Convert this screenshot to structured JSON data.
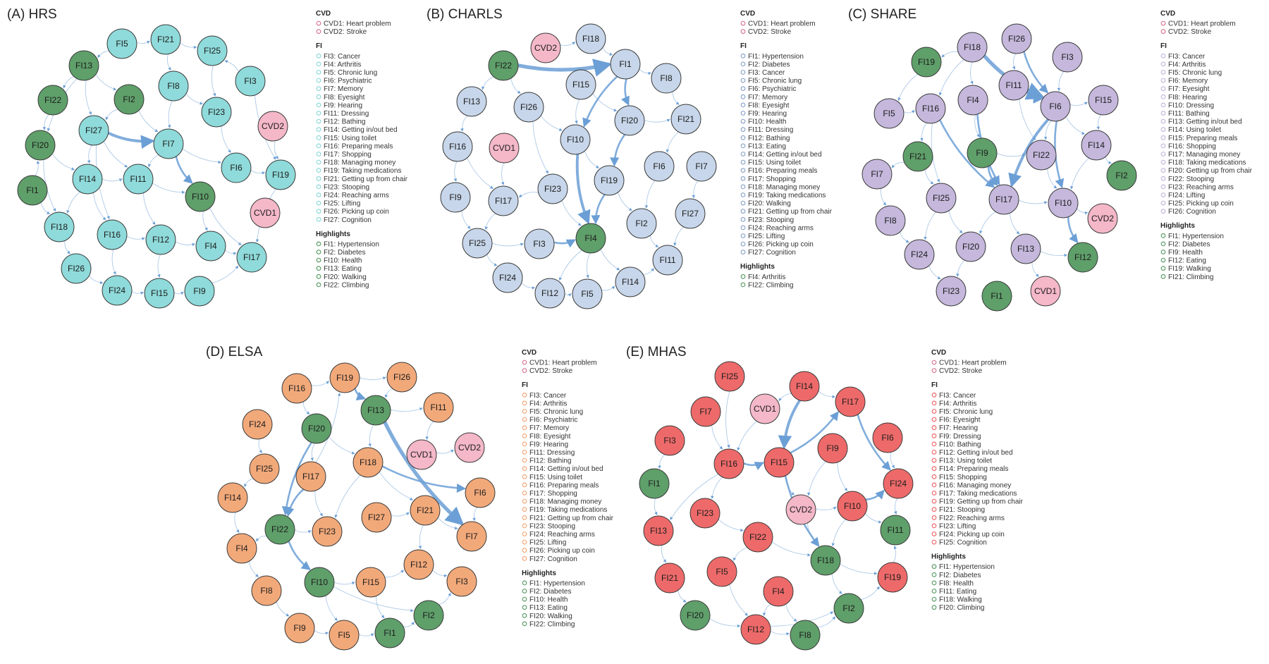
{
  "colors": {
    "hrs": "#8fdada",
    "charls": "#c7d6ea",
    "share": "#c5b8dc",
    "elsa": "#f2a97a",
    "mhas": "#ee6a6a",
    "cvd": "#f4b8c8",
    "highlight": "#5f9f6a",
    "edge": "#6b9fd6"
  },
  "panels": [
    {
      "id": "hrs",
      "title": "(A) HRS",
      "legend": {
        "cvd_header": "CVD",
        "cvd": [
          "CVD1: Heart problem",
          "CVD2: Stroke"
        ],
        "fi_header": "FI",
        "fi": [
          "FI3: Cancer",
          "FI4: Arthritis",
          "FI5: Chronic lung",
          "FI6: Psychiatric",
          "FI7: Memory",
          "FI8: Eyesight",
          "FI9: Hearing",
          "FI11: Dressing",
          "FI12: Bathing",
          "FI14: Getting in/out bed",
          "FI15: Using toilet",
          "FI16: Preparing meals",
          "FI17: Shopping",
          "FI18: Managing money",
          "FI19: Taking medications",
          "FI21: Getting up from chair",
          "FI23: Stooping",
          "FI24: Reaching arms",
          "FI25: Lifting",
          "FI26: Picking up coin",
          "FI27: Cognition"
        ],
        "hl_header": "Highlights",
        "hl": [
          "FI1: Hypertension",
          "FI2: Diabetes",
          "FI10: Health",
          "FI13: Eating",
          "FI20: Walking",
          "FI22: Climbing"
        ]
      },
      "nodes": [
        {
          "id": "FI5",
          "type": "fi"
        },
        {
          "id": "FI21",
          "type": "fi"
        },
        {
          "id": "FI25",
          "type": "fi"
        },
        {
          "id": "FI13",
          "type": "hl"
        },
        {
          "id": "FI3",
          "type": "fi"
        },
        {
          "id": "FI8",
          "type": "fi"
        },
        {
          "id": "FI22",
          "type": "hl"
        },
        {
          "id": "FI2",
          "type": "hl"
        },
        {
          "id": "FI23",
          "type": "fi"
        },
        {
          "id": "CVD2",
          "type": "cvd"
        },
        {
          "id": "FI27",
          "type": "fi"
        },
        {
          "id": "FI20",
          "type": "hl"
        },
        {
          "id": "FI7",
          "type": "fi"
        },
        {
          "id": "FI6",
          "type": "fi"
        },
        {
          "id": "FI19",
          "type": "fi"
        },
        {
          "id": "FI14",
          "type": "fi"
        },
        {
          "id": "FI11",
          "type": "fi"
        },
        {
          "id": "FI1",
          "type": "hl"
        },
        {
          "id": "FI10",
          "type": "hl"
        },
        {
          "id": "CVD1",
          "type": "cvd"
        },
        {
          "id": "FI18",
          "type": "fi"
        },
        {
          "id": "FI16",
          "type": "fi"
        },
        {
          "id": "FI12",
          "type": "fi"
        },
        {
          "id": "FI4",
          "type": "fi"
        },
        {
          "id": "FI17",
          "type": "fi"
        },
        {
          "id": "FI26",
          "type": "fi"
        },
        {
          "id": "FI24",
          "type": "fi"
        },
        {
          "id": "FI15",
          "type": "fi"
        },
        {
          "id": "FI9",
          "type": "fi"
        }
      ]
    },
    {
      "id": "charls",
      "title": "(B) CHARLS",
      "legend": {
        "cvd_header": "CVD",
        "cvd": [
          "CVD1: Heart problem",
          "CVD2: Stroke"
        ],
        "fi_header": "FI",
        "fi": [
          "FI1: Hypertension",
          "FI2: Diabetes",
          "FI3: Cancer",
          "FI5: Chronic lung",
          "FI6: Psychiatric",
          "FI7: Memory",
          "FI8: Eyesight",
          "FI9: Hearing",
          "FI10: Health",
          "FI11: Dressing",
          "FI12: Bathing",
          "FI13: Eating",
          "FI14: Getting in/out bed",
          "FI15: Using toilet",
          "FI16: Preparing meals",
          "FI17: Shopping",
          "FI18: Managing money",
          "FI19: Taking medications",
          "FI20: Walking",
          "FI21: Getting up from chair",
          "FI23: Stooping",
          "FI24: Reaching arms",
          "FI25: Lifting",
          "FI26: Picking up coin",
          "FI27: Cognition"
        ],
        "hl_header": "Highlights",
        "hl": [
          "FI4: Arthritis",
          "FI22: Climbing"
        ]
      },
      "nodes": [
        {
          "id": "CVD2",
          "type": "cvd"
        },
        {
          "id": "FI18",
          "type": "fi"
        },
        {
          "id": "FI22",
          "type": "hl"
        },
        {
          "id": "FI1",
          "type": "fi"
        },
        {
          "id": "FI8",
          "type": "fi"
        },
        {
          "id": "FI15",
          "type": "fi"
        },
        {
          "id": "FI13",
          "type": "fi"
        },
        {
          "id": "FI26",
          "type": "fi"
        },
        {
          "id": "FI20",
          "type": "fi"
        },
        {
          "id": "FI21",
          "type": "fi"
        },
        {
          "id": "FI16",
          "type": "fi"
        },
        {
          "id": "CVD1",
          "type": "cvd"
        },
        {
          "id": "FI10",
          "type": "fi"
        },
        {
          "id": "FI6",
          "type": "fi"
        },
        {
          "id": "FI7",
          "type": "fi"
        },
        {
          "id": "FI23",
          "type": "fi"
        },
        {
          "id": "FI19",
          "type": "fi"
        },
        {
          "id": "FI9",
          "type": "fi"
        },
        {
          "id": "FI17",
          "type": "fi"
        },
        {
          "id": "FI2",
          "type": "fi"
        },
        {
          "id": "FI27",
          "type": "fi"
        },
        {
          "id": "FI25",
          "type": "fi"
        },
        {
          "id": "FI3",
          "type": "fi"
        },
        {
          "id": "FI4",
          "type": "hl"
        },
        {
          "id": "FI11",
          "type": "fi"
        },
        {
          "id": "FI24",
          "type": "fi"
        },
        {
          "id": "FI12",
          "type": "fi"
        },
        {
          "id": "FI5",
          "type": "fi"
        },
        {
          "id": "FI14",
          "type": "fi"
        }
      ]
    },
    {
      "id": "share",
      "title": "(C) SHARE",
      "legend": {
        "cvd_header": "CVD",
        "cvd": [
          "CVD1: Heart problem",
          "CVD2: Stroke"
        ],
        "fi_header": "FI",
        "fi": [
          "FI3: Cancer",
          "FI4: Arthritis",
          "FI5: Chronic lung",
          "FI6: Memory",
          "FI7: Eyesight",
          "FI8: Hearing",
          "FI10: Dressing",
          "FI11: Bathing",
          "FI13: Getting in/out bed",
          "FI14: Using toilet",
          "FI15: Preparing meals",
          "FI16: Shopping",
          "FI17: Managing money",
          "FI18: Taking medications",
          "FI20: Getting up from chair",
          "FI22: Stooping",
          "FI23: Reaching arms",
          "FI24: Lifting",
          "FI25: Picking up coin",
          "FI26: Cognition"
        ],
        "hl_header": "Highlights",
        "hl": [
          "FI1: Hypertension",
          "FI2: Diabetes",
          "FI9: Health",
          "FI12: Eating",
          "FI19: Walking",
          "FI21: Climbing"
        ]
      },
      "nodes": [
        {
          "id": "FI26",
          "type": "fi"
        },
        {
          "id": "FI18",
          "type": "fi"
        },
        {
          "id": "FI19",
          "type": "hl"
        },
        {
          "id": "FI3",
          "type": "fi"
        },
        {
          "id": "FI11",
          "type": "fi"
        },
        {
          "id": "FI4",
          "type": "fi"
        },
        {
          "id": "FI6",
          "type": "fi"
        },
        {
          "id": "FI15",
          "type": "fi"
        },
        {
          "id": "FI5",
          "type": "fi"
        },
        {
          "id": "FI16",
          "type": "fi"
        },
        {
          "id": "FI14",
          "type": "fi"
        },
        {
          "id": "FI21",
          "type": "hl"
        },
        {
          "id": "FI9",
          "type": "hl"
        },
        {
          "id": "FI22",
          "type": "fi"
        },
        {
          "id": "FI2",
          "type": "hl"
        },
        {
          "id": "FI7",
          "type": "fi"
        },
        {
          "id": "FI25",
          "type": "fi"
        },
        {
          "id": "FI17",
          "type": "fi"
        },
        {
          "id": "FI10",
          "type": "fi"
        },
        {
          "id": "CVD2",
          "type": "cvd"
        },
        {
          "id": "FI8",
          "type": "fi"
        },
        {
          "id": "FI24",
          "type": "fi"
        },
        {
          "id": "FI20",
          "type": "fi"
        },
        {
          "id": "FI13",
          "type": "fi"
        },
        {
          "id": "FI12",
          "type": "hl"
        },
        {
          "id": "FI23",
          "type": "fi"
        },
        {
          "id": "FI1",
          "type": "hl"
        },
        {
          "id": "CVD1",
          "type": "cvd"
        }
      ]
    },
    {
      "id": "elsa",
      "title": "(D) ELSA",
      "legend": {
        "cvd_header": "CVD",
        "cvd": [
          "CVD1: Heart problem",
          "CVD2: Stroke"
        ],
        "fi_header": "FI",
        "fi": [
          "FI3: Cancer",
          "FI4: Arthritis",
          "FI5: Chronic lung",
          "FI6: Psychiatric",
          "FI7: Memory",
          "FI8: Eyesight",
          "FI9: Hearing",
          "FI11: Dressing",
          "FI12: Bathing",
          "FI14: Getting in/out bed",
          "FI15: Using toilet",
          "FI16: Preparing meals",
          "FI17: Shopping",
          "FI18: Managing money",
          "FI19: Taking medications",
          "FI21: Getting up from chair",
          "FI23: Stooping",
          "FI24: Reaching arms",
          "FI25: Lifting",
          "FI26: Picking up coin",
          "FI27: Cognition"
        ],
        "hl_header": "Highlights",
        "hl": [
          "FI1: Hypertension",
          "FI2: Diabetes",
          "FI10: Health",
          "FI13: Eating",
          "FI20: Walking",
          "FI22: Climbing"
        ]
      },
      "nodes": [
        {
          "id": "FI16",
          "type": "fi"
        },
        {
          "id": "FI19",
          "type": "fi"
        },
        {
          "id": "FI26",
          "type": "fi"
        },
        {
          "id": "FI13",
          "type": "hl"
        },
        {
          "id": "FI11",
          "type": "fi"
        },
        {
          "id": "FI24",
          "type": "fi"
        },
        {
          "id": "FI20",
          "type": "hl"
        },
        {
          "id": "CVD2",
          "type": "cvd"
        },
        {
          "id": "CVD1",
          "type": "cvd"
        },
        {
          "id": "FI18",
          "type": "fi"
        },
        {
          "id": "FI25",
          "type": "fi"
        },
        {
          "id": "FI17",
          "type": "fi"
        },
        {
          "id": "FI6",
          "type": "fi"
        },
        {
          "id": "FI14",
          "type": "fi"
        },
        {
          "id": "FI27",
          "type": "fi"
        },
        {
          "id": "FI21",
          "type": "fi"
        },
        {
          "id": "FI22",
          "type": "hl"
        },
        {
          "id": "FI23",
          "type": "fi"
        },
        {
          "id": "FI7",
          "type": "fi"
        },
        {
          "id": "FI4",
          "type": "fi"
        },
        {
          "id": "FI12",
          "type": "fi"
        },
        {
          "id": "FI10",
          "type": "hl"
        },
        {
          "id": "FI15",
          "type": "fi"
        },
        {
          "id": "FI3",
          "type": "fi"
        },
        {
          "id": "FI8",
          "type": "fi"
        },
        {
          "id": "FI2",
          "type": "hl"
        },
        {
          "id": "FI9",
          "type": "fi"
        },
        {
          "id": "FI5",
          "type": "fi"
        },
        {
          "id": "FI1",
          "type": "hl"
        }
      ]
    },
    {
      "id": "mhas",
      "title": "(E) MHAS",
      "legend": {
        "cvd_header": "CVD",
        "cvd": [
          "CVD1: Heart problem",
          "CVD2: Stroke"
        ],
        "fi_header": "FI",
        "fi": [
          "FI3: Cancer",
          "FI4: Arthritis",
          "FI5: Chronic lung",
          "FI6: Eyesight",
          "FI7: Hearing",
          "FI9: Dressing",
          "FI10: Bathing",
          "FI12: Getting in/out bed",
          "FI13: Using toilet",
          "FI14: Preparing meals",
          "FI15: Shopping",
          "FI16: Managing money",
          "FI17: Taking medications",
          "FI19: Getting up from chair",
          "FI21: Stooping",
          "FI22: Reaching arms",
          "FI23: Lifting",
          "FI24: Picking up coin",
          "FI25: Cognition"
        ],
        "hl_header": "Highlights",
        "hl": [
          "FI1: Hypertension",
          "FI2: Diabetes",
          "FI8: Health",
          "FI11: Eating",
          "FI18: Walking",
          "FI20: Climbing"
        ]
      },
      "nodes": [
        {
          "id": "FI25",
          "type": "fi"
        },
        {
          "id": "FI14",
          "type": "fi"
        },
        {
          "id": "FI17",
          "type": "fi"
        },
        {
          "id": "FI7",
          "type": "fi"
        },
        {
          "id": "CVD1",
          "type": "cvd"
        },
        {
          "id": "FI6",
          "type": "fi"
        },
        {
          "id": "FI3",
          "type": "fi"
        },
        {
          "id": "FI9",
          "type": "fi"
        },
        {
          "id": "FI16",
          "type": "fi"
        },
        {
          "id": "FI15",
          "type": "fi"
        },
        {
          "id": "FI24",
          "type": "fi"
        },
        {
          "id": "FI1",
          "type": "hl"
        },
        {
          "id": "FI23",
          "type": "fi"
        },
        {
          "id": "CVD2",
          "type": "cvd"
        },
        {
          "id": "FI10",
          "type": "fi"
        },
        {
          "id": "FI13",
          "type": "fi"
        },
        {
          "id": "FI22",
          "type": "fi"
        },
        {
          "id": "FI11",
          "type": "hl"
        },
        {
          "id": "FI18",
          "type": "hl"
        },
        {
          "id": "FI5",
          "type": "fi"
        },
        {
          "id": "FI21",
          "type": "fi"
        },
        {
          "id": "FI4",
          "type": "fi"
        },
        {
          "id": "FI19",
          "type": "fi"
        },
        {
          "id": "FI2",
          "type": "hl"
        },
        {
          "id": "FI20",
          "type": "hl"
        },
        {
          "id": "FI12",
          "type": "fi"
        },
        {
          "id": "FI8",
          "type": "hl"
        }
      ]
    }
  ]
}
